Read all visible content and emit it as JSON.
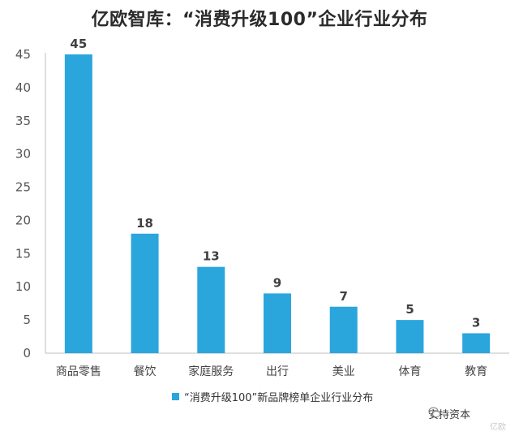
{
  "title": "亿欧智库：“消费升级100”企业行业分布",
  "chart_data": {
    "type": "bar",
    "categories": [
      "商品零售",
      "餐饮",
      "家庭服务",
      "出行",
      "美业",
      "体育",
      "教育"
    ],
    "series": [
      {
        "name": "“消费升级100”新品牌榜单企业行业分布",
        "values": [
          45,
          18,
          13,
          9,
          7,
          5,
          3
        ]
      }
    ],
    "yticks": [
      "0",
      "5",
      "10",
      "15",
      "20",
      "25",
      "30",
      "35",
      "40",
      "45"
    ],
    "ylim": [
      0,
      45
    ],
    "xlabel": "",
    "ylabel": "",
    "grid": false,
    "legend_position": "bottom",
    "bar_color": "#2aa6dd"
  },
  "watermark": {
    "text": "安持资本",
    "sub": "亿欧",
    "icon": "wechat-icon"
  }
}
